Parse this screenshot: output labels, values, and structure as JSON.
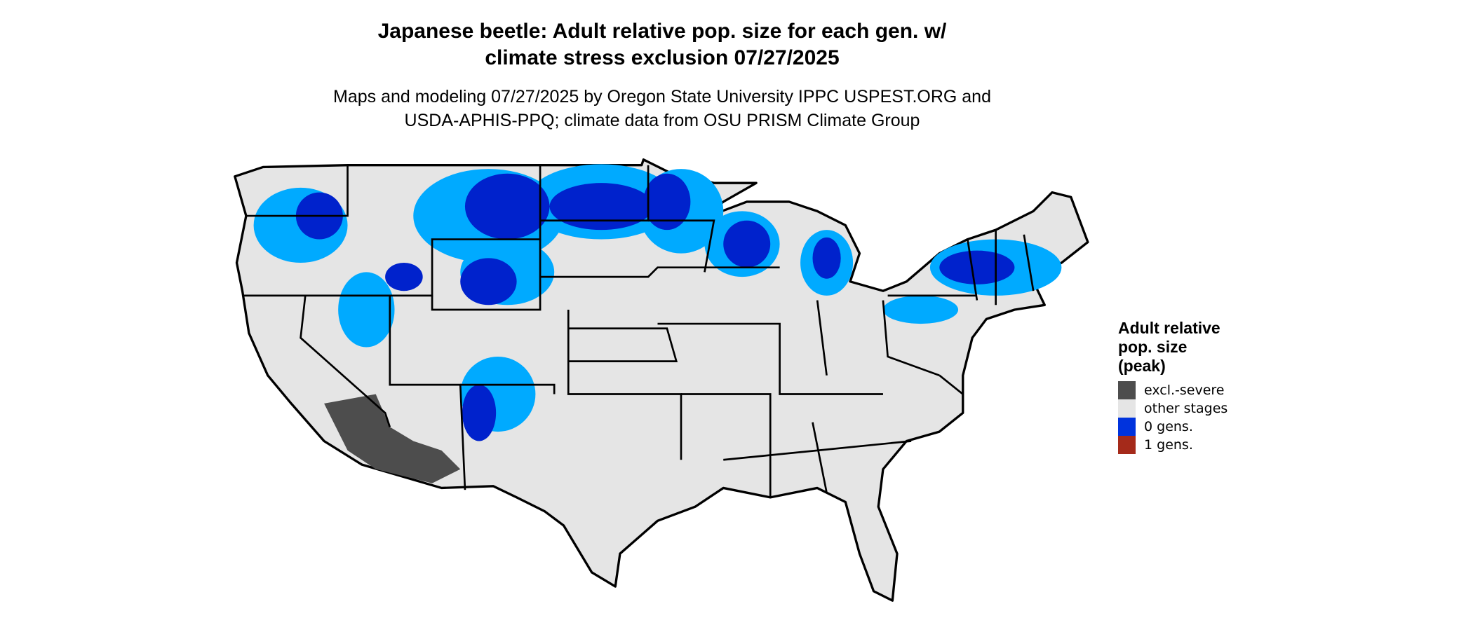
{
  "chart_data": {
    "type": "map",
    "title": "Japanese beetle: Adult relative pop. size for each gen. w/ climate stress exclusion 07/27/2025",
    "title_lines": [
      "Japanese beetle: Adult relative pop. size for each gen. w/",
      "climate stress exclusion 07/27/2025"
    ],
    "subtitle_lines": [
      "Maps and modeling 07/27/2025 by Oregon State University IPPC USPEST.ORG and",
      "USDA-APHIS-PPQ; climate data from OSU PRISM Climate Group"
    ],
    "legend": {
      "title_lines": [
        "Adult relative",
        "pop. size",
        "(peak)"
      ],
      "placement": "right",
      "items": [
        {
          "label": "excl.-severe",
          "color": "#4d4d4d"
        },
        {
          "label": "other stages",
          "color": "#e5e5e5"
        },
        {
          "label": "0 gens.",
          "color": "#0033dd"
        },
        {
          "label": "1 gens.",
          "color": "#a52a1a"
        }
      ]
    },
    "region": "Contiguous United States",
    "colors": {
      "land": "#e5e5e5",
      "border": "#000000",
      "blue_dark": "#0022cc",
      "blue_light": "#00aaff",
      "excl": "#4d4d4d"
    }
  }
}
